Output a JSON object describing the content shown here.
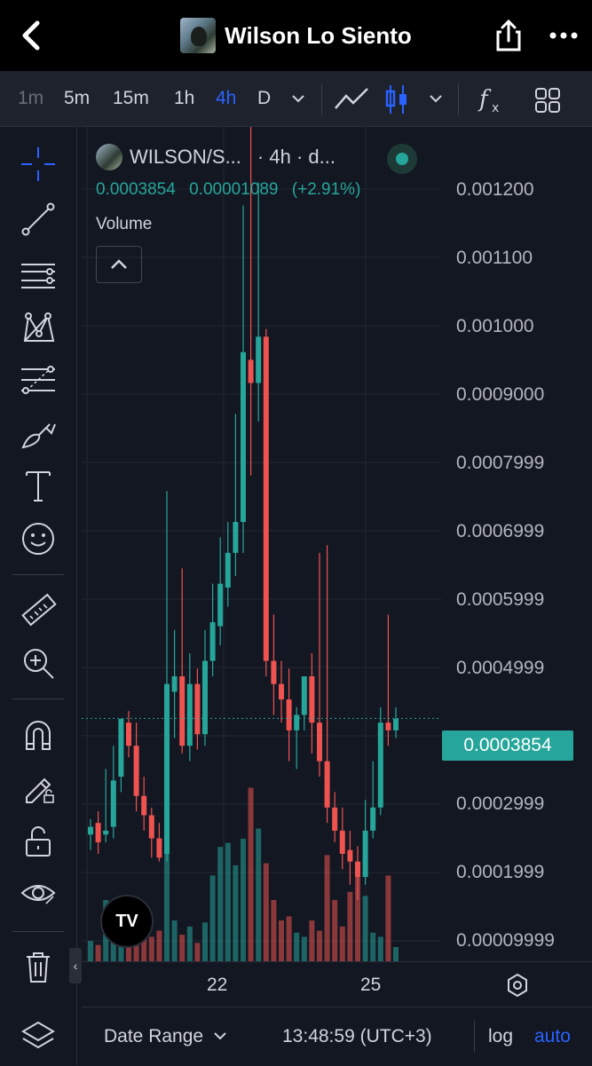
{
  "header": {
    "title": "Wilson Lo Siento"
  },
  "intervals": {
    "items": [
      "1m",
      "5m",
      "15m",
      "1h",
      "4h",
      "D"
    ],
    "active": "4h"
  },
  "legend": {
    "symbol": "WILSON/S...",
    "meta": "· 4h · d...",
    "price": "0.0003854",
    "change": "0.00001089",
    "change_pct": "(+2.91%)",
    "volume_label": "Volume"
  },
  "chart_data": {
    "type": "candlestick",
    "y_ticks": [
      "0.001200",
      "0.001100",
      "0.001000",
      "0.0009000",
      "0.0007999",
      "0.0006999",
      "0.0005999",
      "0.0004999",
      "0.0003999",
      "0.0002999",
      "0.0001999",
      "0.00009999"
    ],
    "x_ticks": [
      "22",
      "25"
    ],
    "ylim": [
      8e-05,
      0.00123
    ],
    "last_price": "0.0003854",
    "colors": {
      "up": "#26a69a",
      "down": "#ef5350"
    },
    "candles": [
      [
        0.000245,
        0.000255,
        0.000235,
        0.000215,
        "up",
        0.1
      ],
      [
        0.00025,
        0.000265,
        0.000225,
        0.00021,
        "down",
        0.08
      ],
      [
        0.000235,
        0.00032,
        0.00024,
        0.000225,
        "up",
        0.3
      ],
      [
        0.000245,
        0.00035,
        0.000305,
        0.00023,
        "up",
        0.25
      ],
      [
        0.00031,
        0.00035,
        0.000385,
        0.00029,
        "up",
        0.32
      ],
      [
        0.00038,
        0.000395,
        0.00035,
        0.000335,
        "down",
        0.18
      ],
      [
        0.00035,
        0.00038,
        0.000285,
        0.000265,
        "down",
        0.15
      ],
      [
        0.000285,
        0.00031,
        0.00026,
        0.00024,
        "down",
        0.12
      ],
      [
        0.00026,
        0.00027,
        0.00023,
        0.000205,
        "down",
        0.12
      ],
      [
        0.00023,
        0.00025,
        0.000205,
        0.0002,
        "down",
        0.15
      ],
      [
        0.00021,
        0.00068,
        0.00043,
        0.0002,
        "up",
        0.55
      ],
      [
        0.00042,
        0.0005,
        0.00044,
        0.00036,
        "up",
        0.2
      ],
      [
        0.00044,
        0.00058,
        0.00035,
        0.00034,
        "down",
        0.13
      ],
      [
        0.00035,
        0.00047,
        0.00043,
        0.00033,
        "up",
        0.17
      ],
      [
        0.00043,
        0.00045,
        0.000365,
        0.000345,
        "down",
        0.09
      ],
      [
        0.000365,
        0.0005,
        0.00046,
        0.00035,
        "up",
        0.19
      ],
      [
        0.00046,
        0.00056,
        0.00051,
        0.00044,
        "up",
        0.42
      ],
      [
        0.000505,
        0.00062,
        0.00056,
        0.00048,
        "up",
        0.56
      ],
      [
        0.000555,
        0.00064,
        0.0006,
        0.00053,
        "up",
        0.58
      ],
      [
        0.0006,
        0.00078,
        0.00064,
        0.00057,
        "up",
        0.47
      ],
      [
        0.00064,
        0.00105,
        0.00086,
        0.0006,
        "up",
        0.6
      ],
      [
        0.00085,
        0.00116,
        0.00082,
        0.0007,
        "down",
        0.85
      ],
      [
        0.00082,
        0.00108,
        0.00088,
        0.00077,
        "up",
        0.65
      ],
      [
        0.00088,
        0.00089,
        0.00046,
        0.00044,
        "down",
        0.48
      ],
      [
        0.00046,
        0.00052,
        0.00043,
        0.00039,
        "down",
        0.3
      ],
      [
        0.00043,
        0.00046,
        0.00041,
        0.00038,
        "down",
        0.2
      ],
      [
        0.00041,
        0.00045,
        0.00037,
        0.00033,
        "down",
        0.22
      ],
      [
        0.00037,
        0.0004,
        0.00039,
        0.00032,
        "up",
        0.14
      ],
      [
        0.00039,
        0.00042,
        0.00044,
        0.00037,
        "up",
        0.12
      ],
      [
        0.00044,
        0.00047,
        0.00038,
        0.00034,
        "down",
        0.2
      ],
      [
        0.00038,
        0.0006,
        0.00033,
        0.00031,
        "down",
        0.15
      ],
      [
        0.00033,
        0.00061,
        0.00027,
        0.00025,
        "down",
        0.52
      ],
      [
        0.00027,
        0.00029,
        0.00024,
        0.000225,
        "down",
        0.3
      ],
      [
        0.00024,
        0.00027,
        0.00021,
        0.00019,
        "down",
        0.17
      ],
      [
        0.000215,
        0.00024,
        0.0002,
        0.00017,
        "down",
        0.34
      ],
      [
        0.0002,
        0.00022,
        0.00018,
        0.00015,
        "down",
        0.48
      ],
      [
        0.00018,
        0.00028,
        0.00024,
        0.00017,
        "up",
        0.32
      ],
      [
        0.00024,
        0.00033,
        0.00027,
        0.00023,
        "up",
        0.14
      ],
      [
        0.00027,
        0.0004,
        0.00038,
        0.00026,
        "up",
        0.12
      ],
      [
        0.00038,
        0.00052,
        0.00037,
        0.00035,
        "down",
        0.42
      ],
      [
        0.00037,
        0.0004,
        0.000385,
        0.00036,
        "up",
        0.07
      ]
    ]
  }
}
